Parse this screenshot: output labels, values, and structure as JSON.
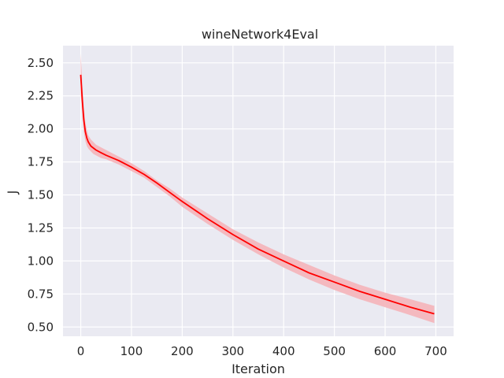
{
  "chart_data": {
    "type": "line",
    "title": "wineNetwork4Eval",
    "xlabel": "Iteration",
    "ylabel": "J",
    "xlim": [
      -35,
      735
    ],
    "ylim": [
      0.43,
      2.63
    ],
    "xticks": [
      0,
      100,
      200,
      300,
      400,
      500,
      600,
      700
    ],
    "yticks": [
      0.5,
      0.75,
      1.0,
      1.25,
      1.5,
      1.75,
      2.0,
      2.25,
      2.5
    ],
    "ytick_labels": [
      "0.50",
      "0.75",
      "1.00",
      "1.25",
      "1.50",
      "1.75",
      "2.00",
      "2.25",
      "2.50"
    ],
    "grid": true,
    "background": "#eaeaf2",
    "grid_color": "#ffffff",
    "line_color": "#ff0000",
    "band_color": "#f4b6bc",
    "series": [
      {
        "x": [
          0,
          3,
          6,
          9,
          12,
          15,
          20,
          25,
          30,
          40,
          50,
          75,
          100,
          125,
          150,
          175,
          200,
          250,
          300,
          350,
          400,
          450,
          500,
          550,
          600,
          650,
          697
        ],
        "mean": [
          2.41,
          2.22,
          2.07,
          1.98,
          1.93,
          1.9,
          1.87,
          1.855,
          1.84,
          1.82,
          1.8,
          1.76,
          1.71,
          1.655,
          1.59,
          1.52,
          1.45,
          1.32,
          1.2,
          1.09,
          1.0,
          0.91,
          0.84,
          0.77,
          0.71,
          0.65,
          0.6
        ],
        "lower": [
          2.27,
          2.1,
          1.98,
          1.91,
          1.87,
          1.85,
          1.83,
          1.81,
          1.8,
          1.78,
          1.77,
          1.73,
          1.68,
          1.63,
          1.56,
          1.49,
          1.41,
          1.28,
          1.16,
          1.05,
          0.95,
          0.86,
          0.78,
          0.71,
          0.65,
          0.59,
          0.53
        ],
        "upper": [
          2.57,
          2.34,
          2.16,
          2.05,
          1.99,
          1.95,
          1.92,
          1.9,
          1.88,
          1.86,
          1.84,
          1.79,
          1.74,
          1.68,
          1.61,
          1.55,
          1.48,
          1.36,
          1.24,
          1.14,
          1.05,
          0.97,
          0.89,
          0.82,
          0.76,
          0.71,
          0.66
        ]
      }
    ]
  }
}
